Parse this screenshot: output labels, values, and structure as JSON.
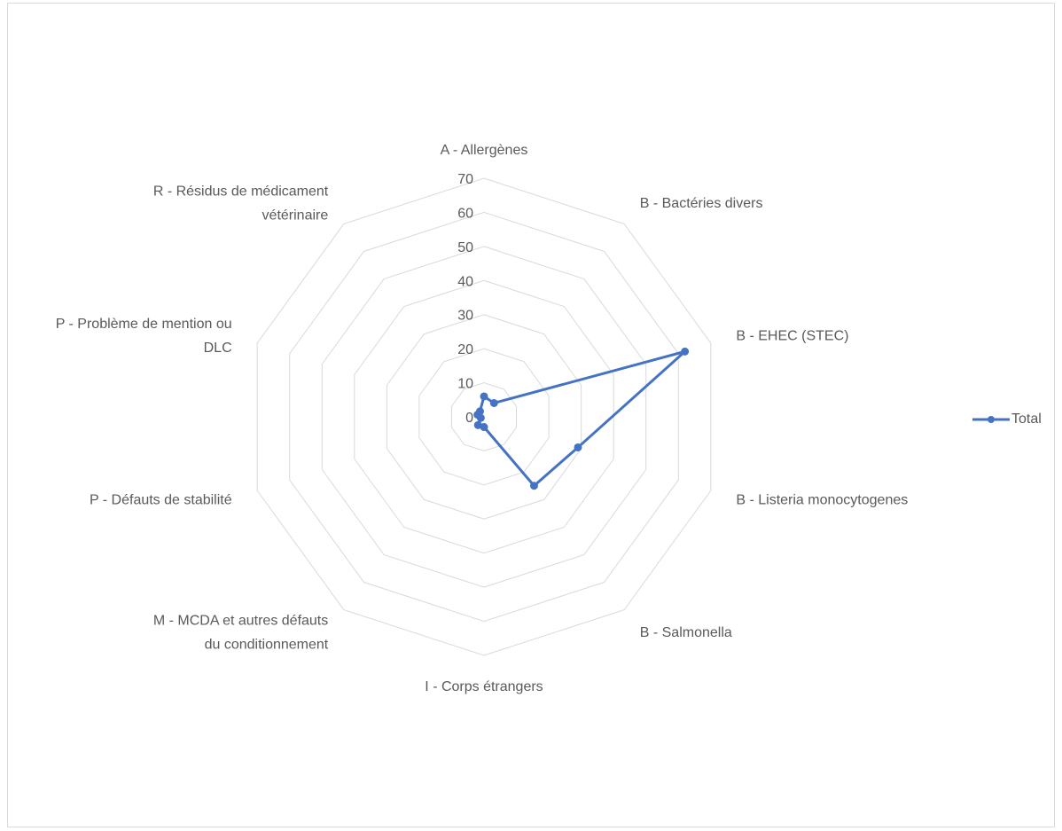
{
  "chart_data": {
    "type": "radar",
    "categories": [
      "A - Allergènes",
      "B - Bactéries divers",
      "B - EHEC (STEC)",
      "B - Listeria monocytogenes",
      "B - Salmonella",
      "I - Corps étrangers",
      "M - MCDA et autres défauts du conditionnement",
      "P - Défauts de stabilité",
      "P - Problème de mention ou DLC",
      "R - Résidus de médicament vétérinaire"
    ],
    "category_lines": [
      [
        "A - Allergènes"
      ],
      [
        "B - Bactéries divers"
      ],
      [
        "B - EHEC (STEC)"
      ],
      [
        "B - Listeria monocytogenes"
      ],
      [
        "B - Salmonella"
      ],
      [
        "I - Corps étrangers"
      ],
      [
        "M - MCDA et autres défauts",
        "du conditionnement"
      ],
      [
        "P - Défauts de stabilité"
      ],
      [
        "P - Problème de mention ou",
        "DLC"
      ],
      [
        "R - Résidus de médicament",
        "vétérinaire"
      ]
    ],
    "series": [
      {
        "name": "Total",
        "values": [
          6,
          5,
          62,
          29,
          25,
          3,
          3,
          1,
          2,
          2
        ],
        "color": "#4472c4"
      }
    ],
    "rlim": [
      0,
      70
    ],
    "rticks": [
      0,
      10,
      20,
      30,
      40,
      50,
      60,
      70
    ],
    "rtick_labels": [
      "0",
      "10",
      "20",
      "30",
      "40",
      "50",
      "60",
      "70"
    ],
    "grid": true,
    "grid_color": "#d9d9d9",
    "legend_position": "right"
  }
}
